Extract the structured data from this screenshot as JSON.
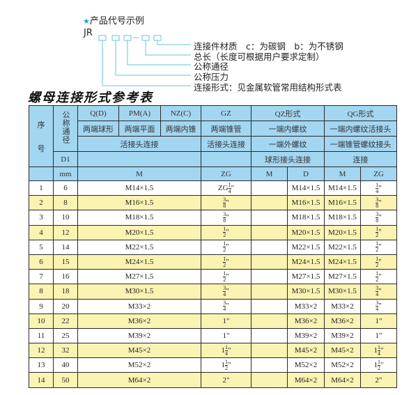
{
  "diagram": {
    "heading": "产品代号示例",
    "star_color": "#1aa3d9",
    "line_color": "#62c6df",
    "code_prefix": "JR",
    "separator": "-",
    "labels": [
      "连接件材质　c：为碳钢　b：为不锈钢",
      "总长（长度可根据用户要求定制）",
      "公称通径",
      "公称压力",
      "连接形式：见金属软管常用结构形式表"
    ]
  },
  "table_title": "螺母连接形式参考表",
  "header": {
    "seq": "序",
    "seq2": "号",
    "nominal": "公称通径",
    "d1": "D1",
    "mm": "mm",
    "q": "Q(D)",
    "pm": "PM(A)",
    "nz": "NZ(C)",
    "gz": "GZ",
    "qz": "QZ形式",
    "qg": "QG形式",
    "q_desc": "两端球形",
    "pm_desc": "两端平面",
    "nz_desc": "两端内锥",
    "gz_desc": "两端锥管",
    "qz_desc1": "一端内螺纹",
    "qg_desc1": "一端内螺纹活接头",
    "union": "活接头连接",
    "gz_union": "活接头连接",
    "qz_desc2": "一端外螺纹",
    "qg_desc2": "一端锥管螺纹接头",
    "qz_desc3": "球形接头连接",
    "qg_desc3": "连接",
    "m": "M",
    "zg": "ZG",
    "qz_m": "M",
    "qz_d": "D",
    "qg_m": "M",
    "qg_zg": "ZG"
  },
  "colors": {
    "header_bg": "#a3d6f1",
    "alt_row_bg": "#fbf3b2"
  },
  "rows": [
    {
      "no": "1",
      "dn": "6",
      "m": "M14×1.5",
      "zg": {
        "whole": "ZG",
        "num": "1",
        "den": "4",
        "unit": "\""
      },
      "qz_m": "",
      "qz_d": "M14×1.5",
      "qg_m": "M14×1.5",
      "qg_zg": {
        "whole": "",
        "num": "1",
        "den": "4",
        "unit": "\""
      }
    },
    {
      "no": "2",
      "dn": "8",
      "m": "M16×1.5",
      "zg": {
        "whole": "",
        "num": "3",
        "den": "8",
        "unit": "\""
      },
      "qz_m": "",
      "qz_d": "M16×1.5",
      "qg_m": "M16×1.5",
      "qg_zg": {
        "whole": "",
        "num": "3",
        "den": "8",
        "unit": "\""
      }
    },
    {
      "no": "3",
      "dn": "10",
      "m": "M18×1.5",
      "zg": {
        "whole": "",
        "num": "3",
        "den": "8",
        "unit": "\""
      },
      "qz_m": "",
      "qz_d": "M18×1.5",
      "qg_m": "M18×1.5",
      "qg_zg": {
        "whole": "",
        "num": "3",
        "den": "8",
        "unit": "\""
      }
    },
    {
      "no": "4",
      "dn": "12",
      "m": "M20×1.5",
      "zg": {
        "whole": "",
        "num": "1",
        "den": "2",
        "unit": "\""
      },
      "qz_m": "",
      "qz_d": "M20×1.5",
      "qg_m": "M20×1.5",
      "qg_zg": {
        "whole": "",
        "num": "1",
        "den": "2",
        "unit": "\""
      }
    },
    {
      "no": "5",
      "dn": "14",
      "m": "M22×1.5",
      "zg": {
        "whole": "",
        "num": "1",
        "den": "2",
        "unit": "\""
      },
      "qz_m": "",
      "qz_d": "M22×1.5",
      "qg_m": "M22×1.5",
      "qg_zg": {
        "whole": "",
        "num": "1",
        "den": "2",
        "unit": "\""
      }
    },
    {
      "no": "6",
      "dn": "15",
      "m": "M24×1.5",
      "zg": {
        "whole": "",
        "num": "1",
        "den": "2",
        "unit": "\""
      },
      "qz_m": "",
      "qz_d": "M24×1.5",
      "qg_m": "M24×1.5",
      "qg_zg": {
        "whole": "",
        "num": "1",
        "den": "2",
        "unit": "\""
      }
    },
    {
      "no": "7",
      "dn": "16",
      "m": "M27×1.5",
      "zg": {
        "whole": "",
        "num": "1",
        "den": "2",
        "unit": "\""
      },
      "qz_m": "",
      "qz_d": "M27×1.5",
      "qg_m": "M27×1.5",
      "qg_zg": {
        "whole": "",
        "num": "1",
        "den": "2",
        "unit": "\""
      }
    },
    {
      "no": "8",
      "dn": "18",
      "m": "M30×1.5",
      "zg": {
        "whole": "",
        "num": "3",
        "den": "4",
        "unit": "\""
      },
      "qz_m": "",
      "qz_d": "M30×1.5",
      "qg_m": "M30×1.5",
      "qg_zg": {
        "whole": "",
        "num": "3",
        "den": "4",
        "unit": "\""
      }
    },
    {
      "no": "9",
      "dn": "20",
      "m": "M33×2",
      "zg": {
        "whole": "",
        "num": "3",
        "den": "4",
        "unit": "\""
      },
      "qz_m": "",
      "qz_d": "M33×2",
      "qg_m": "M33×2",
      "qg_zg": {
        "whole": "",
        "num": "3",
        "den": "4",
        "unit": "\""
      }
    },
    {
      "no": "10",
      "dn": "22",
      "m": "M36×2",
      "zg": {
        "whole": "1\"",
        "num": "",
        "den": "",
        "unit": ""
      },
      "qz_m": "",
      "qz_d": "M36×2",
      "qg_m": "M36×2",
      "qg_zg": {
        "whole": "1\"",
        "num": "",
        "den": "",
        "unit": ""
      }
    },
    {
      "no": "11",
      "dn": "25",
      "m": "M39×2",
      "zg": {
        "whole": "1\"",
        "num": "",
        "den": "",
        "unit": ""
      },
      "qz_m": "",
      "qz_d": "M39×2",
      "qg_m": "M39×2",
      "qg_zg": {
        "whole": "1\"",
        "num": "",
        "den": "",
        "unit": ""
      }
    },
    {
      "no": "12",
      "dn": "32",
      "m": "M45×2",
      "zg": {
        "whole": "1",
        "num": "1",
        "den": "4",
        "unit": "\""
      },
      "qz_m": "",
      "qz_d": "M45×2",
      "qg_m": "M45×2",
      "qg_zg": {
        "whole": "1",
        "num": "1",
        "den": "4",
        "unit": "\""
      }
    },
    {
      "no": "13",
      "dn": "40",
      "m": "M52×2",
      "zg": {
        "whole": "1",
        "num": "1",
        "den": "2",
        "unit": "\""
      },
      "qz_m": "",
      "qz_d": "M52×2",
      "qg_m": "M52×2",
      "qg_zg": {
        "whole": "1",
        "num": "1",
        "den": "2",
        "unit": "\""
      }
    },
    {
      "no": "14",
      "dn": "50",
      "m": "M64×2",
      "zg": {
        "whole": "2\"",
        "num": "",
        "den": "",
        "unit": ""
      },
      "qz_m": "",
      "qz_d": "M64×2",
      "qg_m": "M64×2",
      "qg_zg": {
        "whole": "2\"",
        "num": "",
        "den": "",
        "unit": ""
      }
    }
  ]
}
